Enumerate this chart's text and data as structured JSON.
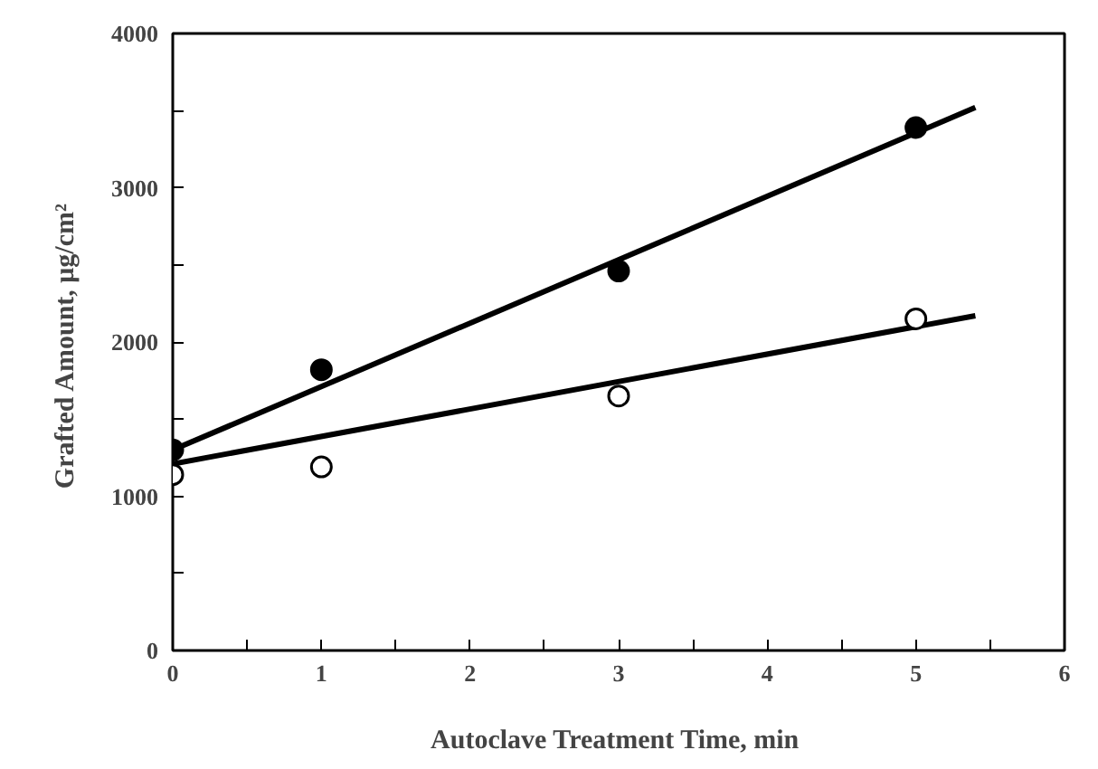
{
  "chart_data": {
    "type": "scatter",
    "xlabel": "Autoclave Treatment  Time, min",
    "ylabel": "Grafted  Amount, μg/cm²",
    "xlim": [
      0,
      6
    ],
    "ylim": [
      0,
      4000
    ],
    "xticks": [
      0,
      {
        "value": 0.5,
        "label": null
      },
      1,
      {
        "value": 1.5,
        "label": null
      },
      2,
      {
        "value": 2.5,
        "label": null
      },
      3,
      {
        "value": 3.5,
        "label": null
      },
      4,
      {
        "value": 4.5,
        "label": null
      },
      5,
      {
        "value": 5.5,
        "label": null
      },
      6
    ],
    "yticks": [
      0,
      {
        "value": 500,
        "label": null
      },
      1000,
      {
        "value": 1500,
        "label": null
      },
      2000,
      {
        "value": 2500,
        "label": null
      },
      3000,
      {
        "value": 3500,
        "label": null
      },
      4000
    ],
    "grid": false,
    "marker": "circle",
    "series": [
      {
        "type": "line",
        "color": "#000000",
        "x": [
          0,
          5.4
        ],
        "values": [
          1300,
          3520
        ],
        "marker": "none"
      },
      {
        "type": "line",
        "color": "#000000",
        "x": [
          0,
          5.4
        ],
        "values": [
          1210,
          2170
        ],
        "marker": "none"
      },
      {
        "color": "#000000",
        "x": [
          0,
          1,
          3,
          5
        ],
        "values": [
          1300,
          1820,
          2460,
          3390
        ]
      },
      {
        "color": "#ffffff",
        "x": [
          0,
          1,
          3,
          5
        ],
        "values": [
          1140,
          1190,
          1650,
          2150
        ]
      }
    ]
  }
}
